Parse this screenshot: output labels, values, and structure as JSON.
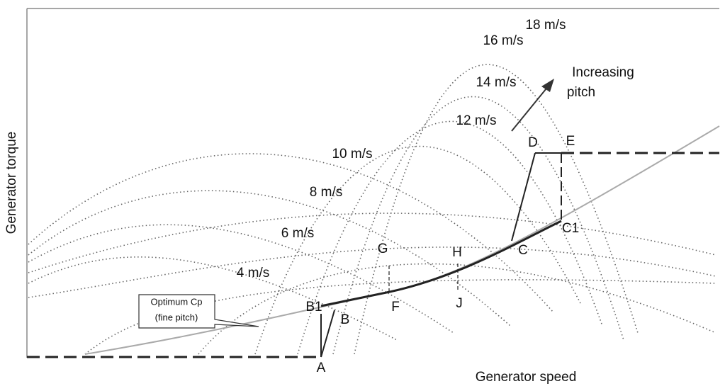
{
  "axes": {
    "y_label": "Generator torque",
    "x_label": "Generator speed"
  },
  "wind_speed_labels": [
    "4 m/s",
    "6 m/s",
    "8 m/s",
    "10 m/s",
    "12 m/s",
    "14 m/s",
    "16 m/s",
    "18 m/s"
  ],
  "annotation": {
    "lines": [
      "Increasing",
      "pitch"
    ]
  },
  "callout": {
    "lines": [
      "Optimum Cp",
      "(fine pitch)"
    ]
  },
  "points": [
    {
      "label": "A"
    },
    {
      "label": "B"
    },
    {
      "label": "B1"
    },
    {
      "label": "C"
    },
    {
      "label": "C1"
    },
    {
      "label": "D"
    },
    {
      "label": "E"
    },
    {
      "label": "F"
    },
    {
      "label": "G"
    },
    {
      "label": "H"
    },
    {
      "label": "J"
    }
  ]
}
